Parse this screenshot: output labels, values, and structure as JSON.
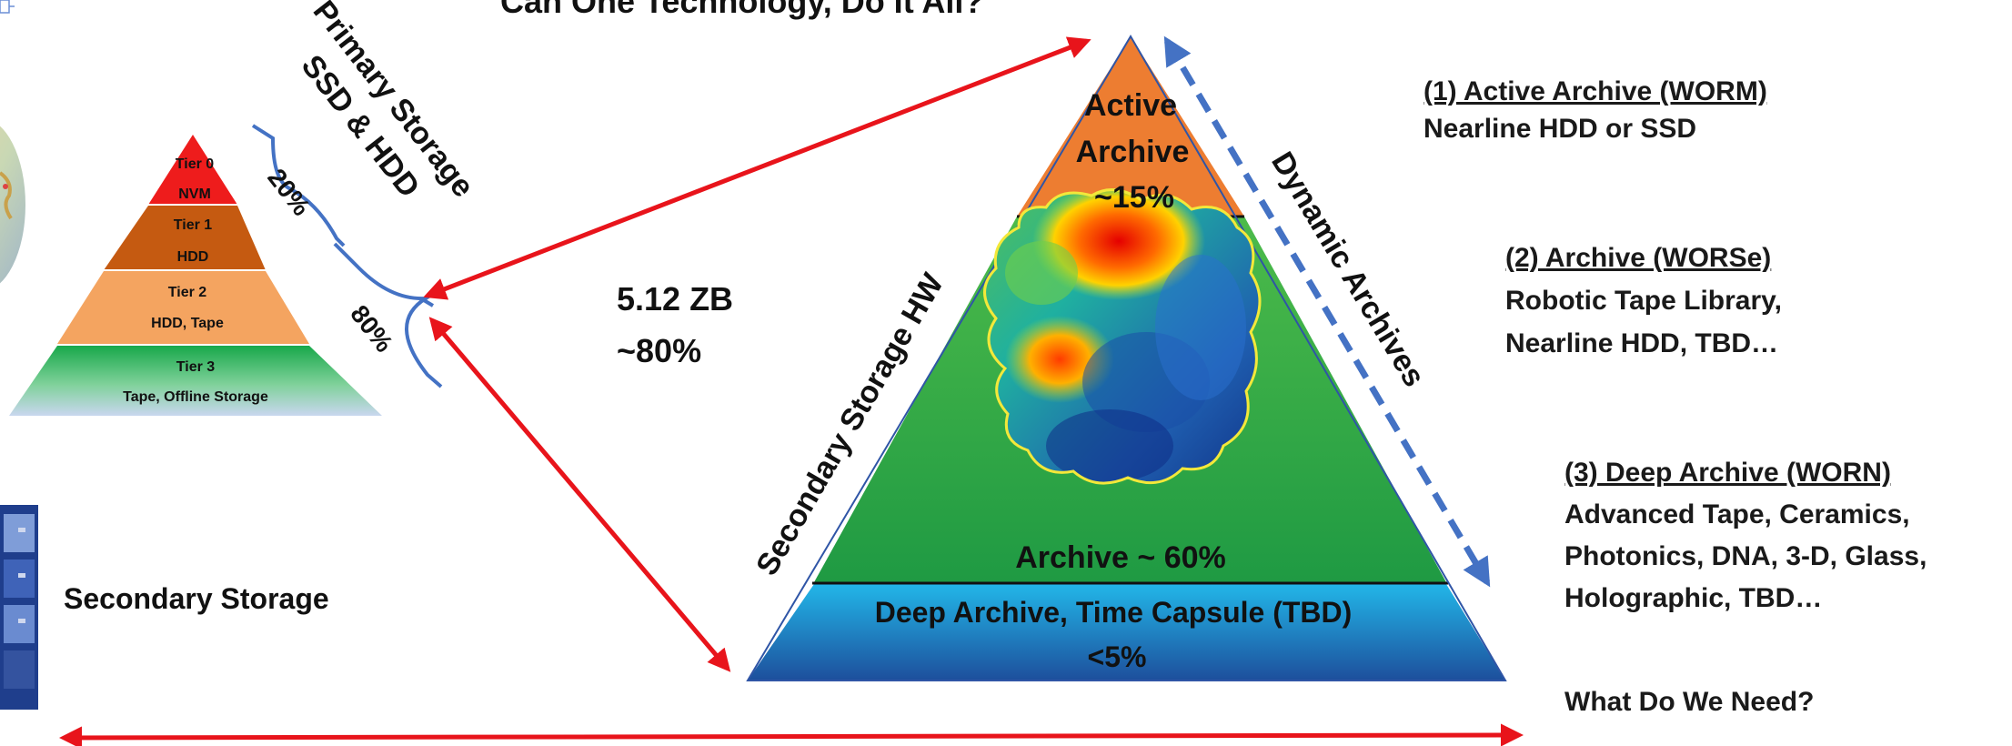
{
  "title": "Can One Technology, Do It All?",
  "small_pyramid": {
    "tier0_name": "Tier 0",
    "tier0_media": "NVM",
    "tier1_name": "Tier 1",
    "tier1_media": "HDD",
    "tier2_name": "Tier 2",
    "tier2_media": "HDD, Tape",
    "tier3_name": "Tier 3",
    "tier3_media": "Tape, Offline Storage"
  },
  "primary_storage": {
    "line1": "Primary Storage",
    "line2": "SSD & HDD"
  },
  "pct_20": "20%",
  "pct_80": "80%",
  "capacity": {
    "value": "5.12 ZB",
    "share": "~80%"
  },
  "secondary_storage_label": "Secondary Storage",
  "big_pyramid": {
    "active_line1": "Active",
    "active_line2": "Archive",
    "active_line3": "~15%",
    "archive": "Archive ~ 60%",
    "deep_line1": "Deep Archive, Time Capsule (TBD)",
    "deep_line2": "<5%",
    "left_side": "Secondary Storage HW",
    "right_side": "Dynamic Archives"
  },
  "tiers_text": {
    "t1_title": "(1) Active Archive  (WORM)",
    "t1_desc": "Nearline HDD or SSD",
    "t2_title": "(2) Archive (WORSe)",
    "t2_desc1": "Robotic Tape Library,",
    "t2_desc2": "Nearline HDD, TBD…",
    "t3_title": "(3) Deep Archive (WORN)",
    "t3_desc1": "Advanced Tape, Ceramics,",
    "t3_desc2": "Photonics, DNA, 3-D, Glass,",
    "t3_desc3": "Holographic, TBD…"
  },
  "question": "What Do We Need?",
  "colors": {
    "red_arrow": "#e8141b",
    "blue_arrow": "#4472c4",
    "tier0": "#ee1c1c",
    "tier1": "#c55a11",
    "tier2": "#f4a460",
    "tier3": "#1aa34a",
    "active": "#ed7d31",
    "archive_green": "#2eb34f",
    "deep_blue": "#1e73c8"
  }
}
